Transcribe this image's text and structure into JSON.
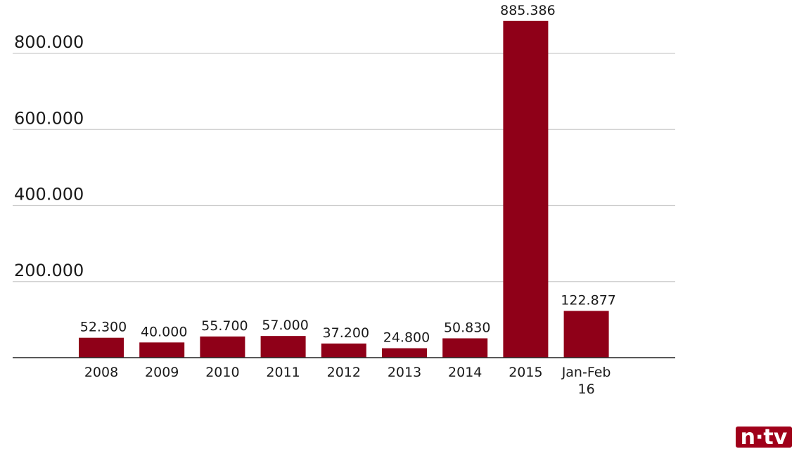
{
  "colors": {
    "bar": "#8f0018",
    "grid": "#cccccc",
    "axis": "#222222",
    "logo_bg": "#a0001a",
    "logo_text": "#ffffff"
  },
  "logo": {
    "text": "n·tv"
  },
  "chart_data": {
    "type": "bar",
    "title": "",
    "xlabel": "",
    "ylabel": "",
    "categories": [
      "2008",
      "2009",
      "2010",
      "2011",
      "2012",
      "2013",
      "2014",
      "2015",
      "Jan-Feb 16"
    ],
    "values": [
      52300,
      40000,
      55700,
      57000,
      37200,
      24800,
      50830,
      885386,
      122877
    ],
    "data_labels": [
      "52.300",
      "40.000",
      "55.700",
      "57.000",
      "37.200",
      "24.800",
      "50.830",
      "885.386",
      "122.877"
    ],
    "yticks": [
      200000,
      400000,
      600000,
      800000
    ],
    "ytick_labels": [
      "200.000",
      "400.000",
      "600.000",
      "800.000"
    ],
    "ylim": [
      0,
      800000
    ],
    "grid": true,
    "legend": "none"
  }
}
